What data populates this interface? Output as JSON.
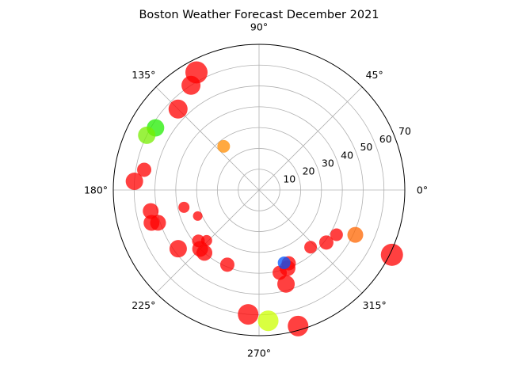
{
  "chart_data": {
    "type": "scatter",
    "projection": "polar",
    "title": "Boston Weather Forecast December 2021",
    "theta_unit": "degrees",
    "theta_ticks": [
      0,
      45,
      90,
      135,
      180,
      225,
      270,
      315
    ],
    "theta_tick_labels": [
      "0°",
      "45°",
      "90°",
      "135°",
      "180°",
      "225°",
      "270°",
      "315°"
    ],
    "r_ticks": [
      10,
      20,
      30,
      40,
      50,
      60,
      70
    ],
    "r_tick_labels": [
      "10",
      "20",
      "30",
      "40",
      "50",
      "60",
      "70"
    ],
    "rlim": [
      0,
      70
    ],
    "grid": true,
    "marker_alpha": 0.75,
    "points": [
      {
        "theta": 118,
        "r": 64,
        "size": 14,
        "color": "#ff0000"
      },
      {
        "theta": 123,
        "r": 60,
        "size": 12,
        "color": "#ff0000"
      },
      {
        "theta": 135,
        "r": 55,
        "size": 12,
        "color": "#ff0000"
      },
      {
        "theta": 129,
        "r": 27,
        "size": 8,
        "color": "#ff8c00"
      },
      {
        "theta": 149,
        "r": 58,
        "size": 11,
        "color": "#22ee00"
      },
      {
        "theta": 154,
        "r": 60,
        "size": 11,
        "color": "#77ee00"
      },
      {
        "theta": 170,
        "r": 56,
        "size": 9,
        "color": "#ff0000"
      },
      {
        "theta": 176,
        "r": 60,
        "size": 11,
        "color": "#ff0000"
      },
      {
        "theta": 191,
        "r": 53,
        "size": 10,
        "color": "#ff0000"
      },
      {
        "theta": 197,
        "r": 54,
        "size": 10,
        "color": "#ff0000"
      },
      {
        "theta": 198,
        "r": 51,
        "size": 10,
        "color": "#ff0000"
      },
      {
        "theta": 193,
        "r": 37,
        "size": 7,
        "color": "#ff0000"
      },
      {
        "theta": 203,
        "r": 32,
        "size": 6,
        "color": "#ff0000"
      },
      {
        "theta": 216,
        "r": 48,
        "size": 11,
        "color": "#ff0000"
      },
      {
        "theta": 220,
        "r": 38,
        "size": 8,
        "color": "#ff0000"
      },
      {
        "theta": 225,
        "r": 40,
        "size": 10,
        "color": "#ff0000"
      },
      {
        "theta": 229,
        "r": 40,
        "size": 10,
        "color": "#ff0000"
      },
      {
        "theta": 224,
        "r": 35,
        "size": 7,
        "color": "#ff0000"
      },
      {
        "theta": 247,
        "r": 39,
        "size": 9,
        "color": "#ff0000"
      },
      {
        "theta": 265,
        "r": 60,
        "size": 13,
        "color": "#ff0000"
      },
      {
        "theta": 274,
        "r": 63,
        "size": 13,
        "color": "#ccff00"
      },
      {
        "theta": 286,
        "r": 68,
        "size": 13,
        "color": "#ff0000"
      },
      {
        "theta": 286,
        "r": 47,
        "size": 11,
        "color": "#ff0000"
      },
      {
        "theta": 284,
        "r": 41,
        "size": 9,
        "color": "#ff0000"
      },
      {
        "theta": 290,
        "r": 40,
        "size": 10,
        "color": "#ff0000"
      },
      {
        "theta": 292,
        "r": 38,
        "size": 9,
        "color": "#ff0000"
      },
      {
        "theta": 289,
        "r": 37,
        "size": 8,
        "color": "#0055ff"
      },
      {
        "theta": 312,
        "r": 37,
        "size": 8,
        "color": "#ff0000"
      },
      {
        "theta": 322,
        "r": 41,
        "size": 9,
        "color": "#ff0000"
      },
      {
        "theta": 330,
        "r": 43,
        "size": 8,
        "color": "#ff0000"
      },
      {
        "theta": 335,
        "r": 51,
        "size": 10,
        "color": "#ff6600"
      },
      {
        "theta": 334,
        "r": 71,
        "size": 14,
        "color": "#ff0000"
      }
    ]
  }
}
